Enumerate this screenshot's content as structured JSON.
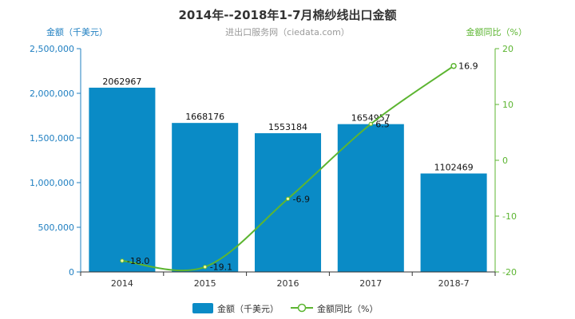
{
  "chart_data": {
    "type": "bar",
    "title": "2014年--2018年1-7月棉纱线出口金额",
    "subtitle": "进出口服务网（ciedata.com）",
    "categories": [
      "2014",
      "2015",
      "2016",
      "2017",
      "2018-7"
    ],
    "series": [
      {
        "name": "金额（千美元）",
        "type": "bar",
        "axis": "left",
        "values": [
          2062967,
          1668176,
          1553184,
          1654957,
          1102469
        ],
        "labels": [
          "2062967",
          "1668176",
          "1553184",
          "1654957",
          "1102469"
        ]
      },
      {
        "name": "金额同比（%）",
        "type": "line",
        "axis": "right",
        "values": [
          -18.0,
          -19.1,
          -6.9,
          6.5,
          16.9
        ],
        "labels": [
          "-18.0",
          "-19.1",
          "-6.9",
          "6.5",
          "16.9"
        ]
      }
    ],
    "y_left": {
      "label": "金额（千美元）",
      "ylim": [
        0,
        2500000
      ],
      "ticks": [
        "0",
        "500,000",
        "1,000,000",
        "1,500,000",
        "2,000,000",
        "2,500,000"
      ]
    },
    "y_right": {
      "label": "金额同比（%）",
      "ylim": [
        -20,
        20
      ],
      "ticks": [
        "-20",
        "-10",
        "0",
        "10",
        "20"
      ]
    },
    "grid": false,
    "legend": "bottom-center",
    "colors": {
      "bar": "#0a8bc6",
      "line": "#5cb531",
      "left_axis": "#1f7fc1",
      "right_axis": "#5cb531"
    }
  }
}
